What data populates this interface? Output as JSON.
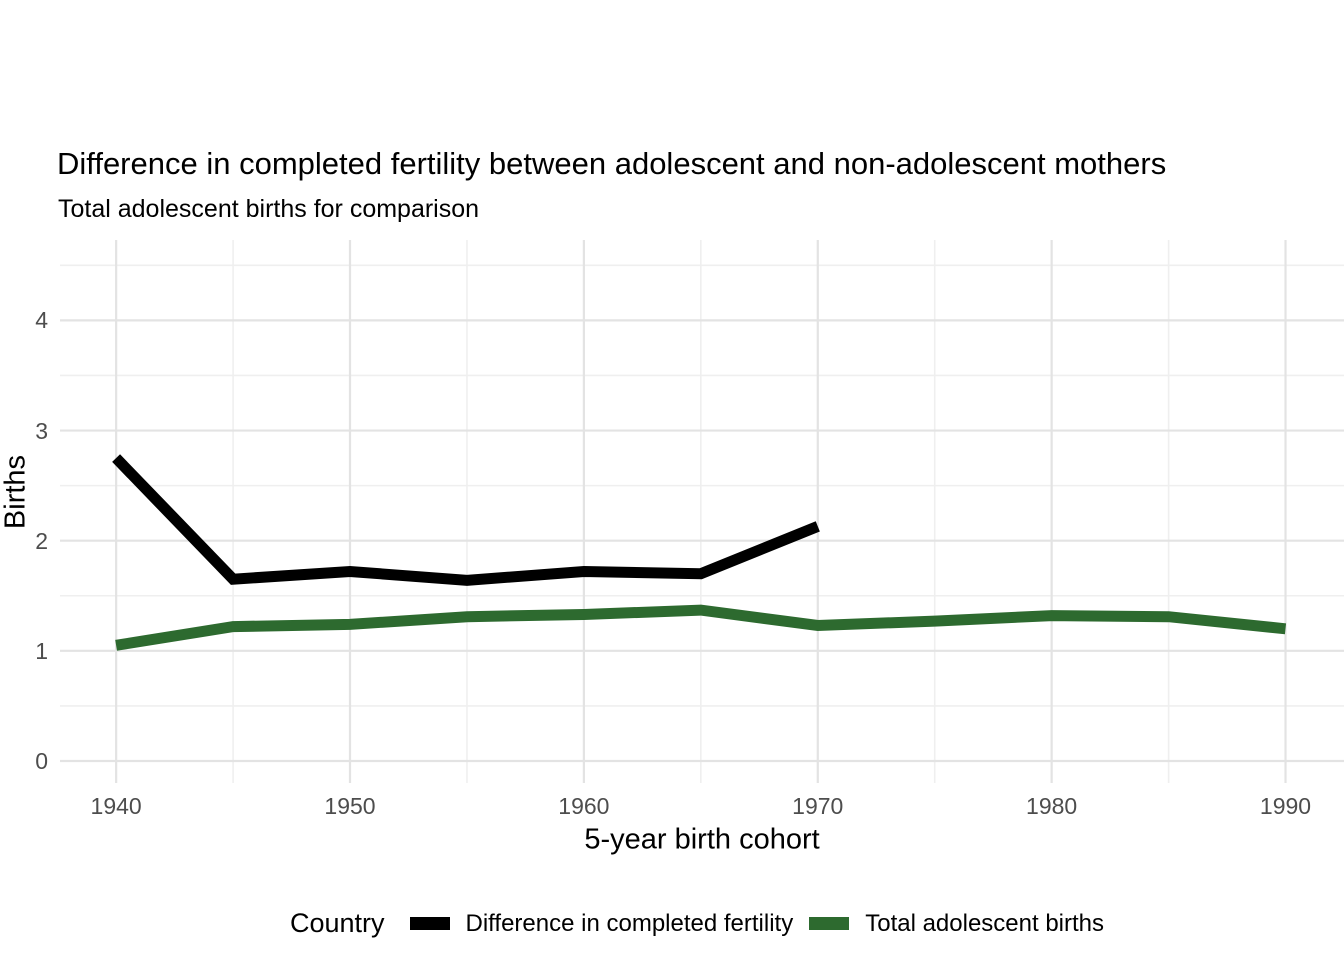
{
  "chart_data": {
    "type": "line",
    "title": "Difference in completed fertility between adolescent and non-adolescent mothers",
    "subtitle": "Total adolescent births for comparison",
    "xlabel": "5-year birth cohort",
    "ylabel": "Births",
    "x_ticks": [
      1940,
      1950,
      1960,
      1970,
      1980,
      1990
    ],
    "x_minor_ticks": [
      1945,
      1955,
      1965,
      1975,
      1985
    ],
    "y_ticks": [
      0,
      1,
      2,
      3,
      4
    ],
    "y_minor_ticks": [
      0.5,
      1.5,
      2.5,
      3.5,
      4.5
    ],
    "xlim": [
      1937.6,
      1992.5
    ],
    "ylim": [
      -0.2,
      4.73
    ],
    "grid": "major and minor, light gray on white (theme_minimal), no axis ticks or axis lines",
    "legend_position": "bottom",
    "legend_title": "Country",
    "colors": {
      "background": "#ffffff",
      "grid_major": "#e3e3e3",
      "grid_minor": "#efefef",
      "tick_text": "#4d4d4d",
      "title_text": "#000000"
    },
    "series": [
      {
        "name": "Difference in completed fertility",
        "color": "#000000",
        "x": [
          1940,
          1945,
          1950,
          1955,
          1960,
          1965,
          1970
        ],
        "values": [
          2.75,
          1.65,
          1.72,
          1.64,
          1.72,
          1.7,
          2.13
        ]
      },
      {
        "name": "Total adolescent births",
        "color": "#2d6a2f",
        "x": [
          1940,
          1945,
          1950,
          1955,
          1960,
          1965,
          1970,
          1975,
          1980,
          1985,
          1990
        ],
        "values": [
          1.05,
          1.22,
          1.24,
          1.31,
          1.33,
          1.37,
          1.23,
          1.27,
          1.32,
          1.31,
          1.2
        ]
      }
    ]
  }
}
